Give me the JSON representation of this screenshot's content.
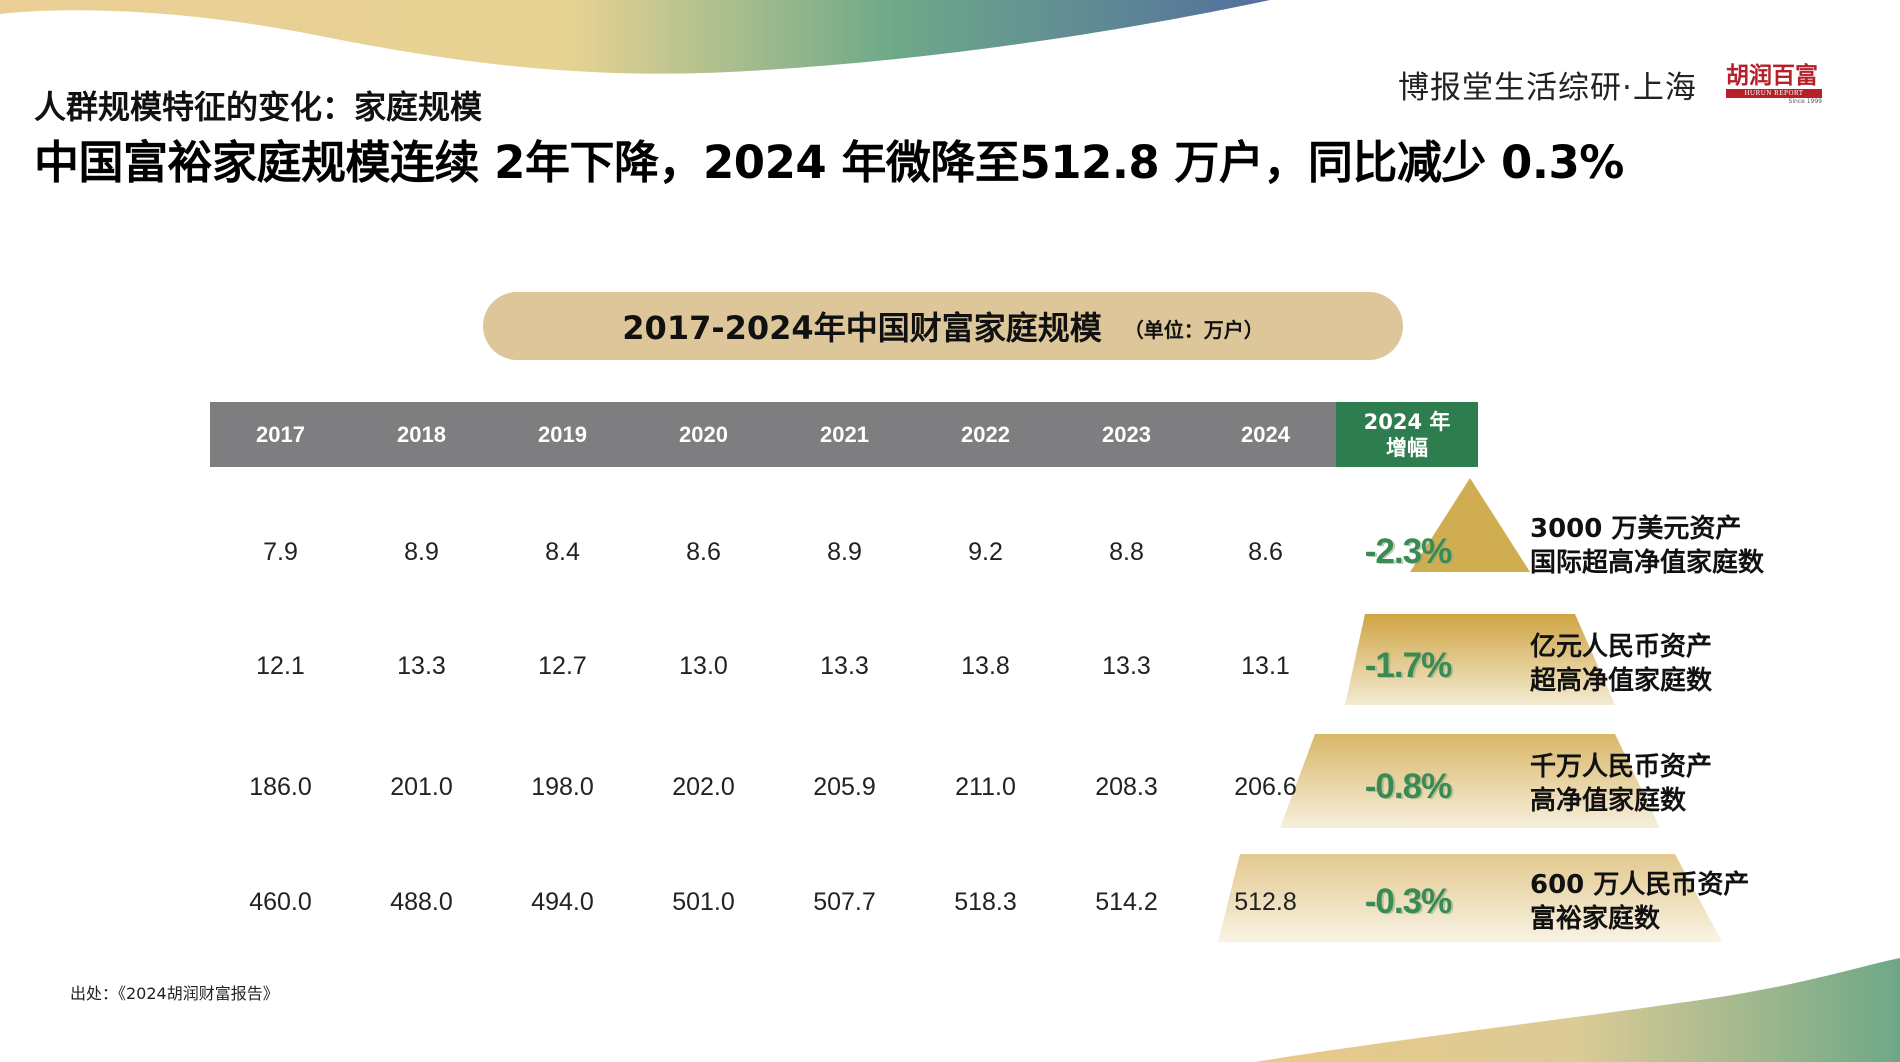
{
  "header": {
    "subtitle": "人群规模特征的变化：家庭规模",
    "title": "中国富裕家庭规模连续 2年下降，2024 年微降至512.8 万户，同比减少 0.3%",
    "brand_text": "博报堂生活综研·上海",
    "logo": {
      "name": "胡润百富",
      "en": "HURUN REPORT",
      "since": "Since 1999"
    }
  },
  "table": {
    "title": "2017-2024年中国财富家庭规模",
    "unit": "（单位：万户）",
    "years": [
      "2017",
      "2018",
      "2019",
      "2020",
      "2021",
      "2022",
      "2023",
      "2024"
    ],
    "growth_header": [
      "2024 年",
      "增幅"
    ],
    "rows": [
      {
        "values": [
          "7.9",
          "8.9",
          "8.4",
          "8.6",
          "8.9",
          "9.2",
          "8.8",
          "8.6"
        ],
        "growth": "-2.3%",
        "label": [
          "3000 万美元资产",
          "国际超高净值家庭数"
        ]
      },
      {
        "values": [
          "12.1",
          "13.3",
          "12.7",
          "13.0",
          "13.3",
          "13.8",
          "13.3",
          "13.1"
        ],
        "growth": "-1.7%",
        "label": [
          "亿元人民币资产",
          "超高净值家庭数"
        ]
      },
      {
        "values": [
          "186.0",
          "201.0",
          "198.0",
          "202.0",
          "205.9",
          "211.0",
          "208.3",
          "206.6"
        ],
        "growth": "-0.8%",
        "label": [
          "千万人民币资产",
          "高净值家庭数"
        ]
      },
      {
        "values": [
          "460.0",
          "488.0",
          "494.0",
          "501.0",
          "507.7",
          "518.3",
          "514.2",
          "512.8"
        ],
        "growth": "-0.3%",
        "label": [
          "600 万人民币资产",
          "富裕家庭数"
        ]
      }
    ]
  },
  "source": "出处：《2024胡润财富报告》",
  "colors": {
    "table_header": "#7e7e80",
    "growth_header": "#2e7d4f",
    "growth_text": "#3a8a56",
    "pill": "#dcc69a",
    "pyramid_gold": "#d1ad52"
  }
}
